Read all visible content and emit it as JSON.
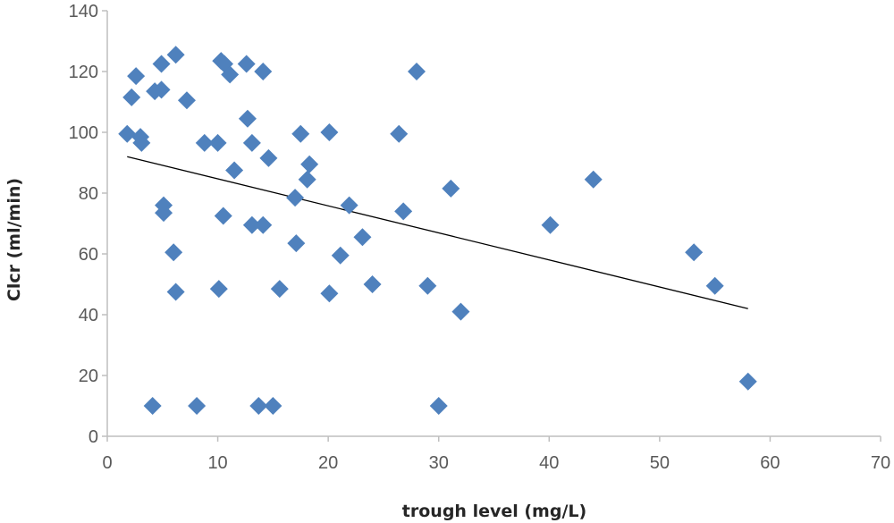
{
  "chart_data": {
    "type": "scatter",
    "title": "",
    "xlabel": "trough level (mg/L)",
    "ylabel": "Clcr (ml/min)",
    "xlim": [
      0,
      70
    ],
    "ylim": [
      0,
      140
    ],
    "xticks": [
      0,
      10,
      20,
      30,
      40,
      50,
      60,
      70
    ],
    "yticks": [
      0,
      20,
      40,
      60,
      80,
      100,
      120,
      140
    ],
    "grid": false,
    "legend": "none",
    "marker": "diamond",
    "marker_color": "#4F81BD",
    "trendline": {
      "type": "linear",
      "from": [
        1.8,
        92
      ],
      "to": [
        58,
        42
      ],
      "color": "#000000"
    },
    "series": [
      {
        "points": [
          [
            1.8,
            99.5
          ],
          [
            2.2,
            111.5
          ],
          [
            2.6,
            118.5
          ],
          [
            3.0,
            98.5
          ],
          [
            3.1,
            96.5
          ],
          [
            4.1,
            10
          ],
          [
            4.3,
            113.5
          ],
          [
            4.9,
            114
          ],
          [
            4.9,
            122.5
          ],
          [
            5.1,
            76
          ],
          [
            5.1,
            73.5
          ],
          [
            6.0,
            60.5
          ],
          [
            6.2,
            125.5
          ],
          [
            6.2,
            47.5
          ],
          [
            7.2,
            110.5
          ],
          [
            8.1,
            10
          ],
          [
            8.8,
            96.5
          ],
          [
            10.0,
            96.5
          ],
          [
            10.1,
            48.5
          ],
          [
            10.3,
            123.5
          ],
          [
            10.5,
            72.5
          ],
          [
            10.6,
            122.5
          ],
          [
            11.1,
            119
          ],
          [
            11.5,
            87.5
          ],
          [
            12.6,
            122.5
          ],
          [
            12.7,
            104.5
          ],
          [
            13.1,
            69.5
          ],
          [
            13.1,
            96.5
          ],
          [
            13.7,
            10
          ],
          [
            14.1,
            69.5
          ],
          [
            14.1,
            120
          ],
          [
            14.6,
            91.5
          ],
          [
            15.0,
            10
          ],
          [
            15.6,
            48.5
          ],
          [
            17.0,
            78.5
          ],
          [
            17.1,
            63.5
          ],
          [
            17.5,
            99.5
          ],
          [
            18.1,
            84.5
          ],
          [
            18.3,
            89.5
          ],
          [
            20.1,
            47
          ],
          [
            20.1,
            100
          ],
          [
            21.1,
            59.5
          ],
          [
            21.9,
            76
          ],
          [
            23.1,
            65.5
          ],
          [
            24.0,
            50
          ],
          [
            26.4,
            99.5
          ],
          [
            26.8,
            74
          ],
          [
            28.0,
            120
          ],
          [
            29.0,
            49.5
          ],
          [
            30.0,
            10
          ],
          [
            31.1,
            81.5
          ],
          [
            32.0,
            41
          ],
          [
            40.1,
            69.5
          ],
          [
            44.0,
            84.5
          ],
          [
            53.1,
            60.5
          ],
          [
            55.0,
            49.5
          ],
          [
            58.0,
            18
          ]
        ]
      }
    ]
  }
}
